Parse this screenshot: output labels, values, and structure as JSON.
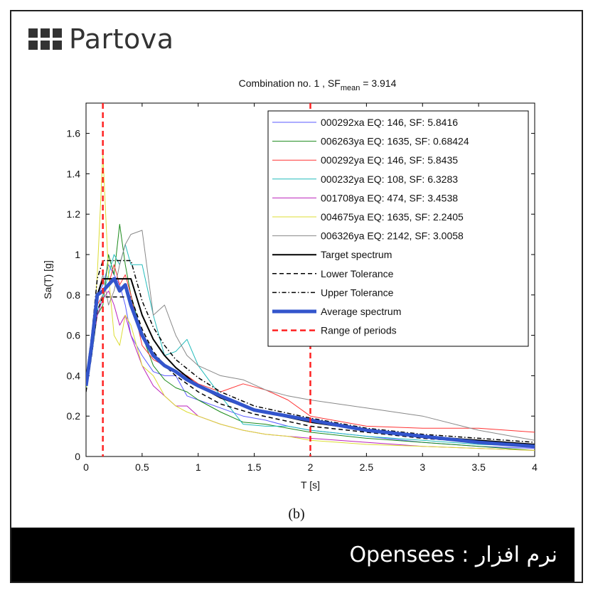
{
  "brand": {
    "name": "Partova"
  },
  "figure_caption": "(b)",
  "footer": {
    "text": "نرم افزار : Opensees"
  },
  "colors": {
    "footer_bg": "#000000",
    "brand": "#333333"
  },
  "chart_data": {
    "type": "line",
    "title": "Combination no. 1 , SF",
    "title_sub": "mean",
    "title_suffix": " = 3.914",
    "xlabel": "T [s]",
    "ylabel": "Sa(T) [g]",
    "xlim": [
      0,
      4
    ],
    "ylim": [
      0,
      1.75
    ],
    "xticks": [
      "0",
      "0.5",
      "1",
      "1.5",
      "2",
      "2.5",
      "3",
      "3.5",
      "4"
    ],
    "yticks": [
      "0",
      "0.2",
      "0.4",
      "0.6",
      "0.8",
      "1",
      "1.2",
      "1.4",
      "1.6"
    ],
    "grid": false,
    "legend_position": "top-right",
    "range_of_periods": [
      0.15,
      2.0
    ],
    "series": [
      {
        "name": "000292xa EQ: 146, SF: 5.8416",
        "color": "#5a5aff",
        "width": 1,
        "dash": "",
        "x": [
          0,
          0.05,
          0.1,
          0.15,
          0.2,
          0.25,
          0.3,
          0.35,
          0.4,
          0.5,
          0.6,
          0.7,
          0.8,
          0.9,
          1.0,
          1.2,
          1.4,
          1.6,
          1.8,
          2.0,
          2.5,
          3.0,
          3.5,
          4.0
        ],
        "y": [
          0.35,
          0.55,
          0.8,
          0.85,
          0.95,
          0.9,
          0.85,
          0.75,
          0.6,
          0.5,
          0.42,
          0.4,
          0.4,
          0.3,
          0.28,
          0.24,
          0.2,
          0.18,
          0.15,
          0.13,
          0.1,
          0.07,
          0.05,
          0.04
        ]
      },
      {
        "name": "006263ya EQ: 1635, SF: 0.68424",
        "color": "#1a8a1a",
        "width": 1,
        "dash": "",
        "x": [
          0,
          0.05,
          0.1,
          0.15,
          0.2,
          0.25,
          0.3,
          0.35,
          0.4,
          0.5,
          0.6,
          0.7,
          0.8,
          0.9,
          1.0,
          1.2,
          1.4,
          1.6,
          1.8,
          2.0,
          2.5,
          3.0,
          3.5,
          4.0
        ],
        "y": [
          0.34,
          0.5,
          0.7,
          0.75,
          1.0,
          0.9,
          1.15,
          0.95,
          0.8,
          0.6,
          0.45,
          0.38,
          0.34,
          0.32,
          0.28,
          0.22,
          0.17,
          0.16,
          0.14,
          0.12,
          0.09,
          0.07,
          0.05,
          0.03
        ]
      },
      {
        "name": "000292ya EQ: 146, SF: 5.8435",
        "color": "#ff3333",
        "width": 1,
        "dash": "",
        "x": [
          0,
          0.05,
          0.1,
          0.15,
          0.2,
          0.25,
          0.3,
          0.35,
          0.4,
          0.5,
          0.6,
          0.7,
          0.8,
          0.9,
          1.0,
          1.2,
          1.4,
          1.6,
          1.8,
          2.0,
          2.5,
          3.0,
          3.5,
          4.0
        ],
        "y": [
          0.36,
          0.55,
          0.75,
          0.8,
          0.85,
          0.95,
          0.85,
          0.9,
          0.8,
          0.55,
          0.48,
          0.45,
          0.42,
          0.4,
          0.36,
          0.32,
          0.36,
          0.33,
          0.28,
          0.2,
          0.15,
          0.14,
          0.14,
          0.12
        ]
      },
      {
        "name": "000232ya EQ: 108, SF: 6.3283",
        "color": "#22bbbb",
        "width": 1,
        "dash": "",
        "x": [
          0,
          0.05,
          0.1,
          0.15,
          0.2,
          0.25,
          0.3,
          0.35,
          0.4,
          0.5,
          0.6,
          0.7,
          0.8,
          0.9,
          1.0,
          1.2,
          1.4,
          1.6,
          1.8,
          2.0,
          2.5,
          3.0,
          3.5,
          4.0
        ],
        "y": [
          0.33,
          0.5,
          0.72,
          0.8,
          0.9,
          1.0,
          0.95,
          1.05,
          0.95,
          0.95,
          0.7,
          0.5,
          0.52,
          0.58,
          0.45,
          0.3,
          0.16,
          0.15,
          0.15,
          0.13,
          0.1,
          0.08,
          0.06,
          0.05
        ]
      },
      {
        "name": "001708ya EQ: 474, SF: 3.4538",
        "color": "#bb22bb",
        "width": 1,
        "dash": "",
        "x": [
          0,
          0.05,
          0.1,
          0.15,
          0.2,
          0.25,
          0.3,
          0.35,
          0.4,
          0.5,
          0.6,
          0.7,
          0.8,
          0.9,
          1.0,
          1.2,
          1.4,
          1.6,
          1.8,
          2.0,
          2.5,
          3.0,
          3.5,
          4.0
        ],
        "y": [
          0.35,
          0.52,
          0.7,
          0.78,
          0.82,
          0.75,
          0.65,
          0.7,
          0.6,
          0.45,
          0.35,
          0.3,
          0.25,
          0.25,
          0.2,
          0.16,
          0.13,
          0.11,
          0.1,
          0.09,
          0.07,
          0.05,
          0.04,
          0.03
        ]
      },
      {
        "name": "004675ya EQ: 1635, SF: 2.2405",
        "color": "#dddd33",
        "width": 1,
        "dash": "",
        "x": [
          0,
          0.05,
          0.1,
          0.15,
          0.2,
          0.25,
          0.3,
          0.35,
          0.4,
          0.5,
          0.6,
          0.7,
          0.8,
          0.9,
          1.0,
          1.2,
          1.4,
          1.6,
          1.8,
          2.0,
          2.5,
          3.0,
          3.5,
          4.0
        ],
        "y": [
          0.34,
          0.5,
          0.9,
          1.5,
          0.9,
          0.6,
          0.55,
          0.7,
          0.65,
          0.45,
          0.4,
          0.3,
          0.25,
          0.22,
          0.2,
          0.16,
          0.13,
          0.11,
          0.1,
          0.08,
          0.06,
          0.05,
          0.04,
          0.03
        ]
      },
      {
        "name": "006326ya EQ: 2142, SF: 3.0058",
        "color": "#888888",
        "width": 1,
        "dash": "",
        "x": [
          0,
          0.05,
          0.1,
          0.15,
          0.2,
          0.25,
          0.3,
          0.35,
          0.4,
          0.5,
          0.6,
          0.7,
          0.8,
          0.9,
          1.0,
          1.2,
          1.4,
          1.6,
          1.8,
          2.0,
          2.5,
          3.0,
          3.5,
          4.0
        ],
        "y": [
          0.35,
          0.55,
          0.8,
          0.9,
          0.75,
          0.82,
          0.95,
          1.05,
          1.1,
          1.12,
          0.7,
          0.75,
          0.6,
          0.5,
          0.45,
          0.4,
          0.38,
          0.33,
          0.3,
          0.28,
          0.24,
          0.2,
          0.13,
          0.08
        ]
      },
      {
        "name": "Target spectrum",
        "color": "#000000",
        "width": 2,
        "dash": "",
        "x": [
          0,
          0.05,
          0.1,
          0.15,
          0.4,
          0.5,
          0.6,
          0.7,
          0.8,
          1.0,
          1.2,
          1.5,
          2.0,
          2.5,
          3.0,
          3.5,
          4.0
        ],
        "y": [
          0.35,
          0.55,
          0.8,
          0.88,
          0.88,
          0.7,
          0.58,
          0.5,
          0.44,
          0.35,
          0.29,
          0.23,
          0.17,
          0.13,
          0.1,
          0.08,
          0.06
        ]
      },
      {
        "name": "Lower Tolerance",
        "color": "#000000",
        "width": 1.5,
        "dash": "6,4",
        "x": [
          0,
          0.05,
          0.1,
          0.15,
          0.4,
          0.5,
          0.6,
          0.7,
          0.8,
          1.0,
          1.2,
          1.5,
          2.0,
          2.5,
          3.0,
          3.5,
          4.0
        ],
        "y": [
          0.32,
          0.5,
          0.72,
          0.79,
          0.79,
          0.63,
          0.52,
          0.45,
          0.4,
          0.32,
          0.26,
          0.21,
          0.15,
          0.12,
          0.09,
          0.07,
          0.05
        ]
      },
      {
        "name": "Upper Tolerance",
        "color": "#000000",
        "width": 1.5,
        "dash": "6,3,1.5,3",
        "x": [
          0,
          0.05,
          0.1,
          0.15,
          0.4,
          0.5,
          0.6,
          0.7,
          0.8,
          1.0,
          1.2,
          1.5,
          2.0,
          2.5,
          3.0,
          3.5,
          4.0
        ],
        "y": [
          0.38,
          0.6,
          0.88,
          0.97,
          0.97,
          0.77,
          0.64,
          0.55,
          0.48,
          0.39,
          0.32,
          0.25,
          0.19,
          0.14,
          0.11,
          0.09,
          0.07
        ]
      },
      {
        "name": "Average spectrum",
        "color": "#3355cc",
        "width": 5,
        "dash": "",
        "x": [
          0,
          0.05,
          0.1,
          0.15,
          0.2,
          0.25,
          0.3,
          0.35,
          0.4,
          0.5,
          0.6,
          0.7,
          0.8,
          0.9,
          1.0,
          1.2,
          1.5,
          2.0,
          2.5,
          3.0,
          3.5,
          4.0
        ],
        "y": [
          0.35,
          0.55,
          0.8,
          0.82,
          0.85,
          0.88,
          0.82,
          0.85,
          0.75,
          0.6,
          0.5,
          0.45,
          0.42,
          0.38,
          0.35,
          0.3,
          0.23,
          0.18,
          0.13,
          0.1,
          0.07,
          0.05
        ]
      },
      {
        "name": "Range of periods",
        "color": "#ff2222",
        "width": 2.5,
        "dash": "8,5",
        "vlines": [
          0.15,
          2.0
        ]
      }
    ]
  }
}
